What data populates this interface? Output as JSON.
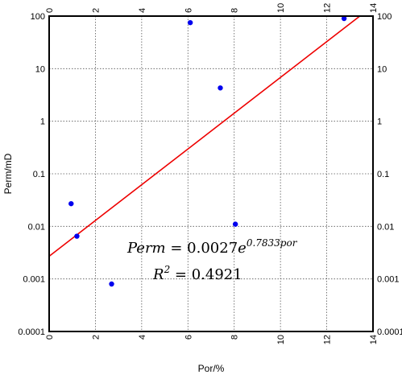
{
  "chart_data": {
    "type": "scatter",
    "xlabel": "Por/%",
    "ylabel": "Perm/mD",
    "xlim": [
      0,
      14
    ],
    "ylim": [
      0.0001,
      100
    ],
    "y_scale": "log",
    "x_ticks": [
      "0",
      "2",
      "4",
      "6",
      "8",
      "10",
      "12",
      "14"
    ],
    "y_ticks": [
      "0.0001",
      "0.001",
      "0.01",
      "0.1",
      "1",
      "10",
      "100"
    ],
    "grid": true,
    "grid_style": "dotted",
    "mirror_ticks": true,
    "points": [
      {
        "x": 0.95,
        "y": 0.027
      },
      {
        "x": 1.2,
        "y": 0.0065
      },
      {
        "x": 2.7,
        "y": 0.0008
      },
      {
        "x": 6.1,
        "y": 75
      },
      {
        "x": 7.4,
        "y": 4.3
      },
      {
        "x": 8.05,
        "y": 0.011
      },
      {
        "x": 12.75,
        "y": 90
      }
    ],
    "point_color": "#0000ee",
    "trendline": {
      "type": "exponential",
      "a": 0.0027,
      "b": 0.7833,
      "color": "#ee0000"
    },
    "annotations": {
      "equation_lhs": "Perm",
      "equation_mid": " = 0.0027",
      "equation_e": "e",
      "equation_exp": "0.7833por",
      "r2_lhs": "R",
      "r2_sup": "2",
      "r2_rhs": " = 0.4921"
    }
  }
}
